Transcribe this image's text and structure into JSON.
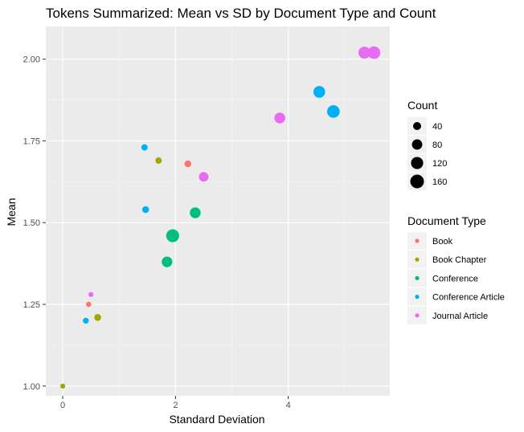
{
  "chart_data": {
    "type": "scatter",
    "title": "Tokens Summarized: Mean vs SD by Document Type and Count",
    "xlabel": "Standard Deviation",
    "ylabel": "Mean",
    "xlim": [
      -0.3,
      5.8
    ],
    "ylim": [
      0.97,
      2.1
    ],
    "x_ticks": [
      0,
      2,
      4
    ],
    "x_tick_labels": [
      "0",
      "2",
      "4"
    ],
    "y_ticks": [
      1.0,
      1.25,
      1.5,
      1.75,
      2.0
    ],
    "y_tick_labels": [
      "1.00",
      "1.25",
      "1.50",
      "1.75",
      "2.00"
    ],
    "grid": true,
    "legend_position": "right",
    "size_legend": {
      "title": "Count",
      "entries": [
        {
          "label": "40",
          "value": 40
        },
        {
          "label": "80",
          "value": 80
        },
        {
          "label": "120",
          "value": 120
        },
        {
          "label": "160",
          "value": 160
        }
      ]
    },
    "color_legend": {
      "title": "Document Type",
      "entries": [
        {
          "label": "Book",
          "color": "#F8766D"
        },
        {
          "label": "Book Chapter",
          "color": "#A3A500"
        },
        {
          "label": "Conference",
          "color": "#00BF7D"
        },
        {
          "label": "Conference Article",
          "color": "#00B0F6"
        },
        {
          "label": "Journal Article",
          "color": "#E76BF3"
        }
      ]
    },
    "points": [
      {
        "type": "Book",
        "x": 2.22,
        "y": 1.68,
        "count": 25
      },
      {
        "type": "Book",
        "x": 0.46,
        "y": 1.25,
        "count": 10
      },
      {
        "type": "Book Chapter",
        "x": 1.7,
        "y": 1.69,
        "count": 20
      },
      {
        "type": "Book Chapter",
        "x": 0.62,
        "y": 1.21,
        "count": 25
      },
      {
        "type": "Book Chapter",
        "x": 0.0,
        "y": 1.0,
        "count": 8
      },
      {
        "type": "Conference",
        "x": 1.95,
        "y": 1.46,
        "count": 140
      },
      {
        "type": "Conference",
        "x": 2.35,
        "y": 1.53,
        "count": 90
      },
      {
        "type": "Conference",
        "x": 1.85,
        "y": 1.38,
        "count": 85
      },
      {
        "type": "Conference Article",
        "x": 1.45,
        "y": 1.73,
        "count": 20
      },
      {
        "type": "Conference Article",
        "x": 1.47,
        "y": 1.54,
        "count": 25
      },
      {
        "type": "Conference Article",
        "x": 0.41,
        "y": 1.2,
        "count": 15
      },
      {
        "type": "Conference Article",
        "x": 4.55,
        "y": 1.9,
        "count": 110
      },
      {
        "type": "Conference Article",
        "x": 4.8,
        "y": 1.84,
        "count": 130
      },
      {
        "type": "Journal Article",
        "x": 2.5,
        "y": 1.64,
        "count": 65
      },
      {
        "type": "Journal Article",
        "x": 3.85,
        "y": 1.82,
        "count": 90
      },
      {
        "type": "Journal Article",
        "x": 5.35,
        "y": 2.02,
        "count": 115
      },
      {
        "type": "Journal Article",
        "x": 5.52,
        "y": 2.02,
        "count": 130
      },
      {
        "type": "Journal Article",
        "x": 0.5,
        "y": 1.28,
        "count": 8
      }
    ]
  }
}
